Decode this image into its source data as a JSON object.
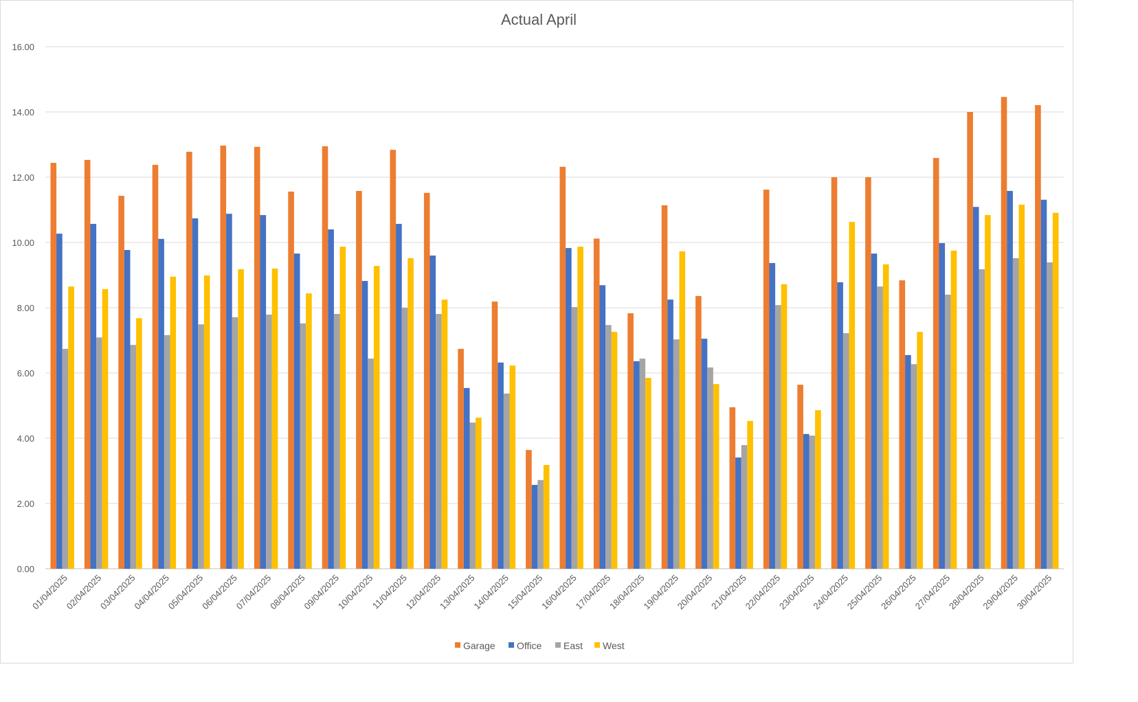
{
  "chart_data": {
    "type": "bar",
    "title": "Actual April",
    "xlabel": "",
    "ylabel": "",
    "ylim": [
      0,
      16
    ],
    "yticks": [
      "0.00",
      "2.00",
      "4.00",
      "6.00",
      "8.00",
      "10.00",
      "12.00",
      "14.00",
      "16.00"
    ],
    "grid": true,
    "legend_position": "bottom",
    "categories": [
      "01/04/2025",
      "02/04/2025",
      "03/04/2025",
      "04/04/2025",
      "05/04/2025",
      "06/04/2025",
      "07/04/2025",
      "08/04/2025",
      "09/04/2025",
      "10/04/2025",
      "11/04/2025",
      "12/04/2025",
      "13/04/2025",
      "14/04/2025",
      "15/04/2025",
      "16/04/2025",
      "17/04/2025",
      "18/04/2025",
      "19/04/2025",
      "20/04/2025",
      "21/04/2025",
      "22/04/2025",
      "23/04/2025",
      "24/04/2025",
      "25/04/2025",
      "26/04/2025",
      "27/04/2025",
      "28/04/2025",
      "29/04/2025",
      "30/04/2025"
    ],
    "series": [
      {
        "name": "Garage",
        "color": "#ED7D31",
        "values": [
          12.44,
          12.53,
          11.43,
          12.38,
          12.78,
          12.97,
          12.93,
          11.56,
          12.95,
          11.58,
          12.84,
          11.52,
          6.74,
          8.19,
          3.64,
          12.32,
          10.12,
          7.83,
          11.14,
          8.36,
          4.95,
          11.62,
          5.64,
          12.0,
          12.0,
          8.84,
          12.59,
          14.0,
          14.46,
          14.21
        ]
      },
      {
        "name": "Office",
        "color": "#4472C4",
        "values": [
          10.27,
          10.57,
          9.77,
          10.11,
          10.74,
          10.88,
          10.84,
          9.66,
          10.4,
          8.82,
          10.57,
          9.6,
          5.54,
          6.32,
          2.57,
          9.83,
          8.69,
          6.36,
          8.25,
          7.05,
          3.41,
          9.37,
          4.13,
          8.78,
          9.66,
          6.55,
          9.98,
          11.09,
          11.58,
          11.31
        ]
      },
      {
        "name": "East",
        "color": "#A5A5A5",
        "values": [
          6.74,
          7.09,
          6.86,
          7.16,
          7.49,
          7.71,
          7.79,
          7.52,
          7.81,
          6.44,
          8.0,
          7.81,
          4.48,
          5.37,
          2.72,
          8.02,
          7.47,
          6.44,
          7.03,
          6.17,
          3.79,
          8.08,
          4.08,
          7.22,
          8.65,
          6.27,
          8.4,
          9.18,
          9.52,
          9.39
        ]
      },
      {
        "name": "West",
        "color": "#FFC000",
        "values": [
          8.65,
          8.57,
          7.68,
          8.95,
          8.99,
          9.18,
          9.2,
          8.44,
          9.87,
          9.28,
          9.52,
          8.25,
          4.63,
          6.23,
          3.18,
          9.87,
          7.26,
          5.85,
          9.73,
          5.66,
          4.53,
          8.72,
          4.86,
          10.63,
          9.33,
          7.26,
          9.75,
          10.84,
          11.16,
          10.91
        ]
      }
    ]
  }
}
